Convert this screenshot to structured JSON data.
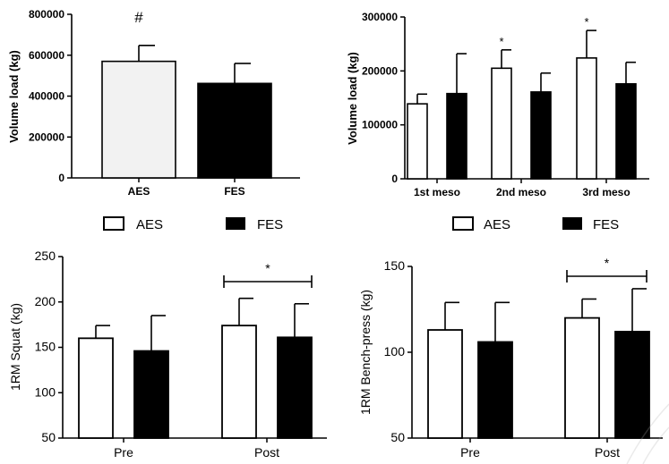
{
  "chart_data": [
    {
      "id": "A",
      "type": "bar",
      "title": "",
      "xlabel": "",
      "ylabel": "Volume load (kg)",
      "ylim": [
        0,
        800000
      ],
      "yticks": [
        0,
        200000,
        400000,
        600000,
        800000
      ],
      "ytick_labels": [
        "0",
        "200000",
        "400000",
        "600000",
        "800000"
      ],
      "categories": [
        "AES",
        "FES"
      ],
      "values": [
        570000,
        462000
      ],
      "errors": [
        78000,
        98000
      ],
      "fills": [
        "#f2f2f2",
        "#000000"
      ],
      "annotations": [
        {
          "category": "AES",
          "text": "#"
        }
      ]
    },
    {
      "id": "B",
      "type": "bar",
      "title": "",
      "xlabel": "",
      "ylabel": "Volume load (kg)",
      "ylim": [
        0,
        300000
      ],
      "yticks": [
        0,
        100000,
        200000,
        300000
      ],
      "ytick_labels": [
        "0",
        "100000",
        "200000",
        "300000"
      ],
      "categories": [
        "1st meso",
        "2nd meso",
        "3rd meso"
      ],
      "series": [
        {
          "name": "AES",
          "values": [
            139000,
            205000,
            224000
          ],
          "errors": [
            18000,
            34000,
            51000
          ],
          "annotations": [
            "",
            "*",
            "*"
          ]
        },
        {
          "name": "FES",
          "values": [
            158000,
            161000,
            176000
          ],
          "errors": [
            74000,
            35000,
            40000
          ],
          "annotations": [
            "",
            "",
            ""
          ]
        }
      ]
    },
    {
      "id": "C",
      "type": "bar",
      "title": "",
      "xlabel": "",
      "ylabel": "1RM Squat (kg)",
      "ylim": [
        50,
        250
      ],
      "yticks": [
        50,
        100,
        150,
        200,
        250
      ],
      "ytick_labels": [
        "50",
        "100",
        "150",
        "200",
        "250"
      ],
      "categories": [
        "Pre",
        "Post"
      ],
      "series": [
        {
          "name": "AES",
          "values": [
            160,
            174
          ],
          "errors": [
            14,
            30
          ]
        },
        {
          "name": "FES",
          "values": [
            146,
            161
          ],
          "errors": [
            39,
            37
          ]
        }
      ],
      "significance": {
        "category": "Post",
        "text": "*"
      }
    },
    {
      "id": "D",
      "type": "bar",
      "title": "",
      "xlabel": "",
      "ylabel": "1RM Bench-press (kg)",
      "ylim": [
        50,
        150
      ],
      "yticks": [
        50,
        100,
        150
      ],
      "ytick_labels": [
        "50",
        "100",
        "150"
      ],
      "categories": [
        "Pre",
        "Post"
      ],
      "series": [
        {
          "name": "AES",
          "values": [
            113,
            120
          ],
          "errors": [
            16,
            11
          ]
        },
        {
          "name": "FES",
          "values": [
            106,
            112
          ],
          "errors": [
            23,
            25
          ]
        }
      ],
      "significance": {
        "category": "Post",
        "text": "*"
      }
    }
  ],
  "legend_top_left": {
    "items": [
      {
        "label": "AES",
        "color": "#ffffff"
      },
      {
        "label": "FES",
        "color": "#000000"
      }
    ]
  },
  "legend_top_right": {
    "items": [
      {
        "label": "AES",
        "color": "#ffffff"
      },
      {
        "label": "FES",
        "color": "#000000"
      }
    ]
  }
}
